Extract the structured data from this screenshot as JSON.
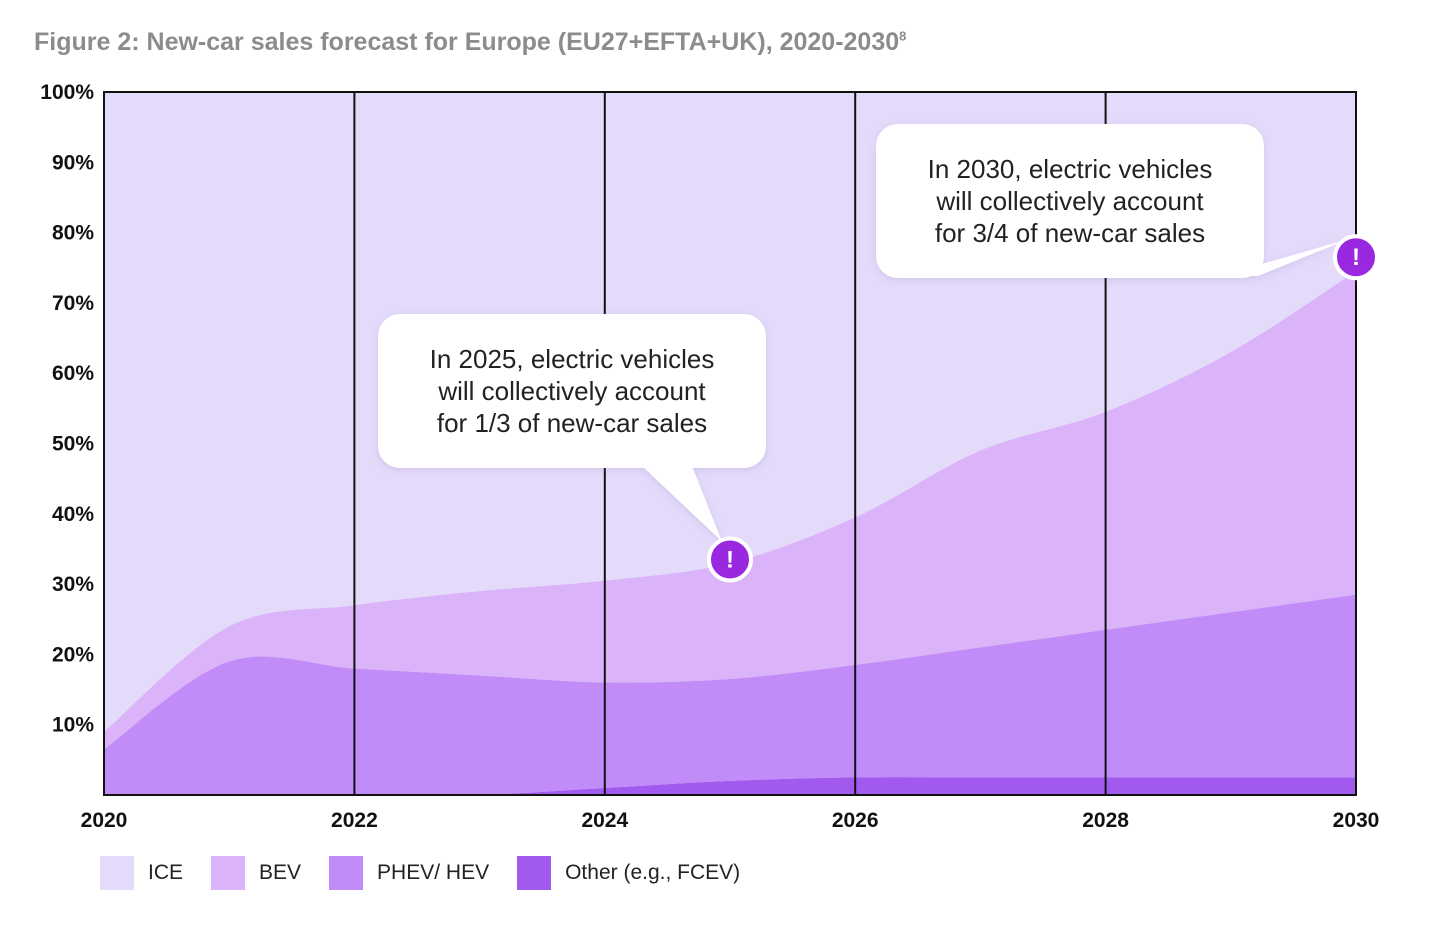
{
  "title": "Figure 2: New-car sales forecast for Europe (EU27+EFTA+UK), 2020-2030",
  "title_footnote": "8",
  "chart_data": {
    "type": "area",
    "stacked": true,
    "title": "Figure 2: New-car sales forecast for Europe (EU27+EFTA+UK), 2020-2030",
    "xlabel": "",
    "ylabel": "",
    "x": [
      2020,
      2021,
      2022,
      2023,
      2024,
      2025,
      2026,
      2027,
      2028,
      2029,
      2030
    ],
    "xlim": [
      2020,
      2030
    ],
    "ylim": [
      0,
      100
    ],
    "x_ticks": [
      "2020",
      "2022",
      "2024",
      "2026",
      "2028",
      "2030"
    ],
    "y_ticks": [
      "10%",
      "20%",
      "30%",
      "40%",
      "50%",
      "60%",
      "70%",
      "80%",
      "90%",
      "100%"
    ],
    "grid": "vertical lines at every 2 years",
    "legend_position": "bottom-left",
    "series": [
      {
        "name": "Other (e.g., FCEV)",
        "color": "#a25aee",
        "values": [
          0,
          0,
          0,
          0,
          1,
          2,
          2.5,
          2.5,
          2.5,
          2.5,
          2.5
        ]
      },
      {
        "name": "PHEV/ HEV",
        "color": "#c18cf8",
        "values": [
          6.5,
          19,
          18,
          17,
          15,
          14.5,
          16,
          18.5,
          21,
          23.5,
          26
        ]
      },
      {
        "name": "BEV",
        "color": "#dab3f9",
        "values": [
          2.5,
          5,
          9,
          12,
          14.5,
          16.5,
          21,
          28,
          31,
          37,
          46
        ]
      },
      {
        "name": "ICE",
        "color": "#e4dbfb",
        "values": [
          91,
          76,
          73,
          71,
          69.5,
          67,
          60.5,
          51,
          45.5,
          37,
          25.5
        ]
      }
    ],
    "legend": [
      {
        "label": "ICE",
        "color": "#e4dbfb"
      },
      {
        "label": "BEV",
        "color": "#dab3f9"
      },
      {
        "label": "PHEV/ HEV",
        "color": "#c18cf8"
      },
      {
        "label": "Other (e.g., FCEV)",
        "color": "#a25aee"
      }
    ],
    "annotations": [
      {
        "x": 2025,
        "y": 33.5,
        "icon": "!",
        "lines": [
          "In 2025, electric vehicles",
          "will collectively account",
          "for 1/3 of new-car sales"
        ]
      },
      {
        "x": 2030,
        "y": 76.5,
        "icon": "!",
        "lines": [
          "In 2030, electric vehicles",
          "will collectively account",
          "for 3/4 of new-car sales"
        ]
      }
    ]
  },
  "colors": {
    "accent": "#9a28e0",
    "frame": "#111111"
  }
}
